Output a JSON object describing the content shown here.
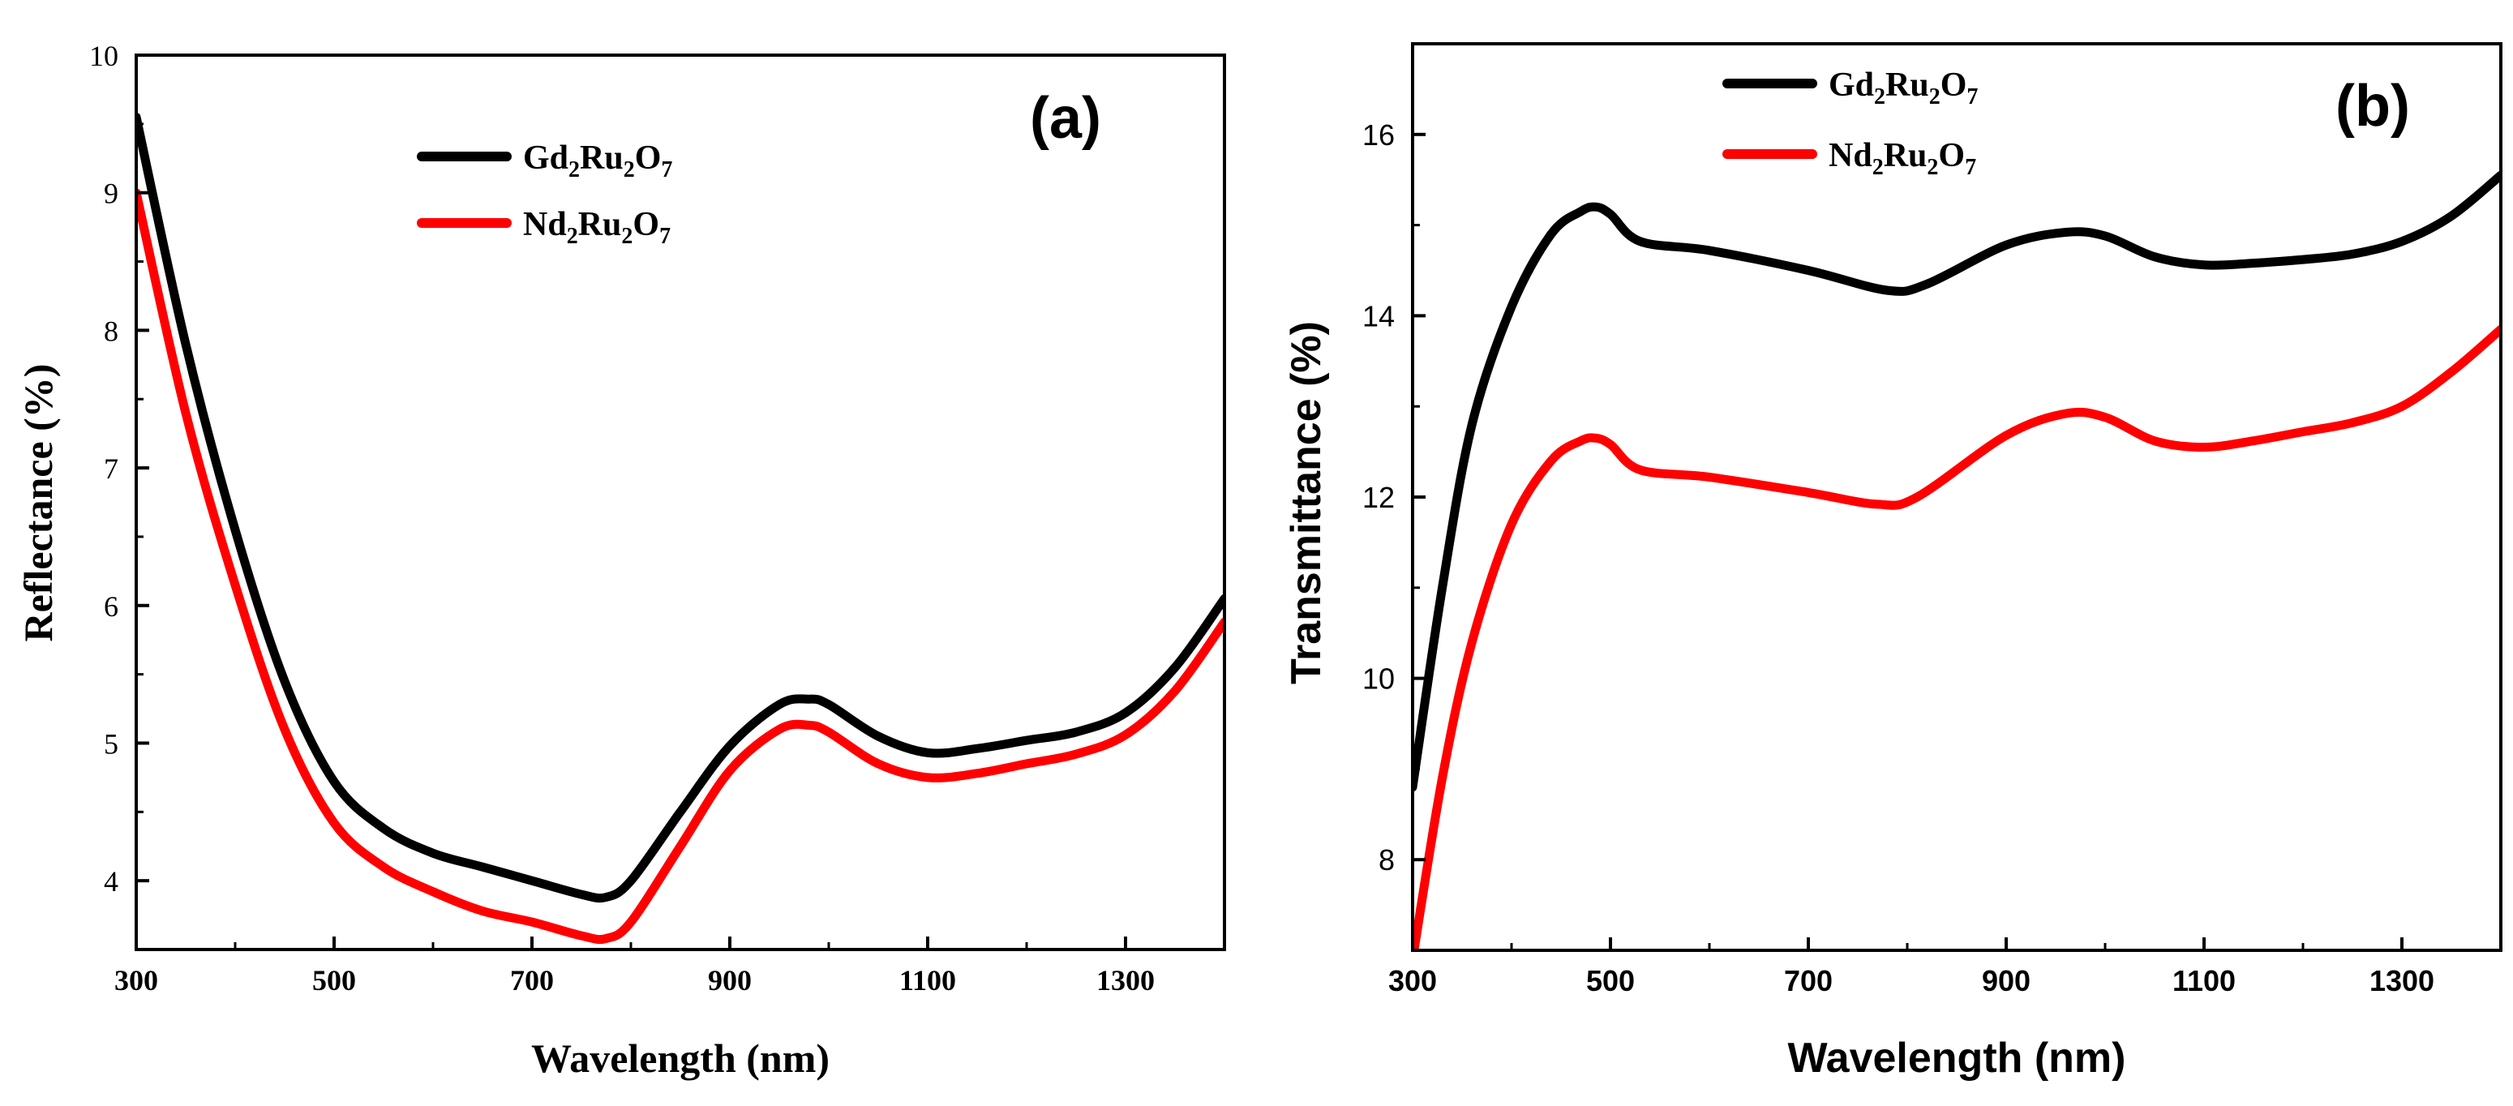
{
  "chart_data": [
    {
      "type": "line",
      "panel_label": "(a)",
      "xlabel": "Wavelength (nm)",
      "ylabel": "Reflectance (%)",
      "xlim": [
        300,
        1400
      ],
      "ylim": [
        3.5,
        10
      ],
      "xticks": [
        300,
        500,
        700,
        900,
        1100,
        1300
      ],
      "yticks": [
        4,
        5,
        6,
        7,
        8,
        9,
        10
      ],
      "legend_position": "top-center",
      "series": [
        {
          "name": "Gd2Ru2O7",
          "label_parts": [
            "Gd",
            "2",
            "Ru",
            "2",
            "O",
            "7"
          ],
          "color": "#000000",
          "x": [
            300,
            350,
            400,
            450,
            500,
            550,
            600,
            650,
            700,
            750,
            775,
            800,
            850,
            900,
            950,
            980,
            1000,
            1050,
            1100,
            1150,
            1200,
            1250,
            1300,
            1350,
            1400
          ],
          "y": [
            9.55,
            7.9,
            6.55,
            5.45,
            4.72,
            4.38,
            4.2,
            4.1,
            4.0,
            3.9,
            3.88,
            4.0,
            4.5,
            4.98,
            5.28,
            5.32,
            5.28,
            5.05,
            4.93,
            4.96,
            5.02,
            5.08,
            5.22,
            5.55,
            6.05
          ]
        },
        {
          "name": "Nd2Ru2O7",
          "label_parts": [
            "Nd",
            "2",
            "Ru",
            "2",
            "O",
            "7"
          ],
          "color": "#ff0000",
          "x": [
            300,
            350,
            400,
            450,
            500,
            550,
            600,
            650,
            700,
            750,
            775,
            800,
            850,
            900,
            950,
            980,
            1000,
            1050,
            1100,
            1150,
            1200,
            1250,
            1300,
            1350,
            1400
          ],
          "y": [
            9.0,
            7.4,
            6.15,
            5.1,
            4.42,
            4.1,
            3.92,
            3.78,
            3.7,
            3.6,
            3.58,
            3.7,
            4.25,
            4.8,
            5.1,
            5.13,
            5.08,
            4.85,
            4.75,
            4.78,
            4.85,
            4.92,
            5.06,
            5.38,
            5.88
          ]
        }
      ]
    },
    {
      "type": "line",
      "panel_label": "(b)",
      "xlabel": "Wavelength (nm)",
      "ylabel": "Transmittance (%)",
      "xlim": [
        300,
        1400
      ],
      "ylim": [
        7,
        17
      ],
      "xticks": [
        300,
        500,
        700,
        900,
        1100,
        1300
      ],
      "yticks": [
        8,
        10,
        12,
        14,
        16
      ],
      "legend_position": "top-center",
      "series": [
        {
          "name": "Gd2Ru2O7",
          "label_parts": [
            "Gd",
            "2",
            "Ru",
            "2",
            "O",
            "7"
          ],
          "color": "#000000",
          "x": [
            300,
            330,
            360,
            400,
            440,
            470,
            485,
            500,
            530,
            600,
            700,
            780,
            820,
            900,
            960,
            1000,
            1050,
            1100,
            1150,
            1200,
            1250,
            1300,
            1350,
            1400
          ],
          "y": [
            8.8,
            11.0,
            12.8,
            14.1,
            14.9,
            15.15,
            15.2,
            15.12,
            14.82,
            14.72,
            14.5,
            14.28,
            14.35,
            14.78,
            14.92,
            14.88,
            14.65,
            14.56,
            14.58,
            14.62,
            14.68,
            14.82,
            15.1,
            15.55
          ]
        },
        {
          "name": "Nd2Ru2O7",
          "label_parts": [
            "Nd",
            "2",
            "Ru",
            "2",
            "O",
            "7"
          ],
          "color": "#ff0000",
          "x": [
            300,
            330,
            360,
            400,
            440,
            470,
            485,
            500,
            530,
            600,
            700,
            770,
            810,
            900,
            960,
            1000,
            1050,
            1100,
            1150,
            1200,
            1250,
            1300,
            1350,
            1400
          ],
          "y": [
            6.9,
            8.9,
            10.4,
            11.7,
            12.4,
            12.62,
            12.65,
            12.58,
            12.3,
            12.22,
            12.05,
            11.92,
            12.0,
            12.68,
            12.92,
            12.88,
            12.62,
            12.55,
            12.62,
            12.72,
            12.82,
            13.0,
            13.38,
            13.85
          ]
        }
      ]
    }
  ]
}
